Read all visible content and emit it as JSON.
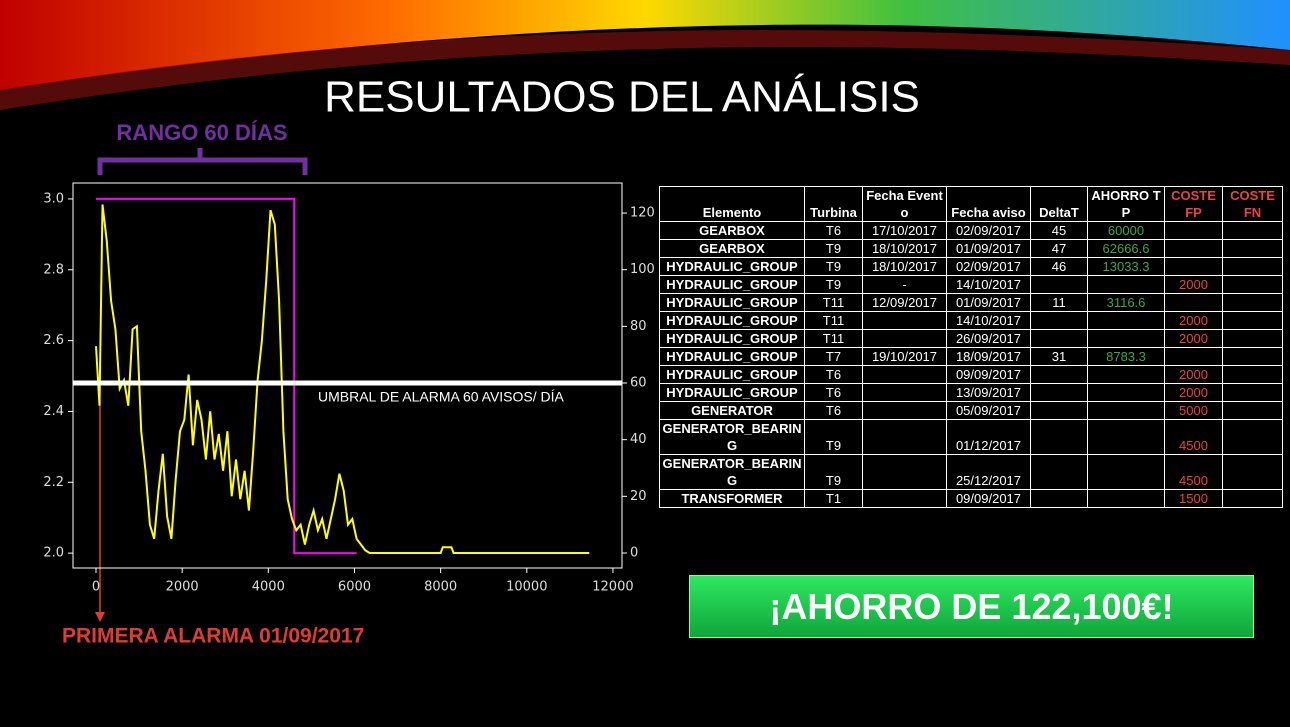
{
  "title": "RESULTADOS DEL ANÁLISIS",
  "chart_data": {
    "type": "line",
    "annotations": {
      "range": "RANGO 60 DÍAS",
      "first_alarm": "PRIMERA ALARMA 01/09/2017",
      "threshold": "UMBRAL DE ALARMA 60 AVISOS/ DÍA"
    },
    "threshold": {
      "value": 60,
      "axis": "y2",
      "color": "#ffffff"
    },
    "xlim": [
      -534,
      12210
    ],
    "xticks": [
      0,
      2000,
      4000,
      6000,
      8000,
      10000,
      12000
    ],
    "ylim": [
      1.958,
      3.045
    ],
    "yticks": [
      {
        "value": 2,
        "label": "2.0"
      },
      2.2,
      2.4,
      2.6,
      2.8,
      {
        "value": 3,
        "label": "3.0"
      }
    ],
    "y2lim": [
      -5.3,
      130.6
    ],
    "y2ticks": [
      0,
      20,
      40,
      60,
      80,
      100,
      120
    ],
    "series": [
      {
        "color": "#ff00ff",
        "x": [
          0,
          4600,
          4600,
          6050
        ],
        "values": [
          3,
          3,
          2,
          2
        ]
      },
      {
        "color": "#ffff00",
        "axis": "y2",
        "x": [
          0,
          80,
          150,
          250,
          350,
          450,
          550,
          650,
          750,
          850,
          950,
          1050,
          1150,
          1250,
          1350,
          1450,
          1550,
          1650,
          1750,
          1850,
          1950,
          2050,
          2150,
          2250,
          2350,
          2450,
          2550,
          2650,
          2750,
          2850,
          2950,
          3050,
          3150,
          3250,
          3350,
          3450,
          3550,
          3650,
          3750,
          3850,
          3950,
          4050,
          4150,
          4250,
          4350,
          4450,
          4550,
          4650,
          4750,
          4850,
          4950,
          5050,
          5150,
          5250,
          5350,
          5450,
          5550,
          5650,
          5750,
          5850,
          5950,
          6050,
          6150,
          6250,
          6350,
          8000,
          8050,
          8250,
          8300,
          11450
        ],
        "values": [
          73,
          52,
          123,
          110,
          89,
          79,
          58,
          61,
          52,
          79,
          80,
          43,
          29,
          10,
          5,
          22,
          35,
          13,
          5,
          26,
          43,
          47,
          63,
          38,
          54,
          47,
          33,
          50,
          33,
          42,
          29,
          43,
          20,
          33,
          19,
          29,
          15,
          36,
          61,
          75,
          96,
          121,
          116,
          89,
          43,
          19,
          12,
          8,
          10,
          3,
          10,
          15,
          8,
          12,
          5,
          12,
          19,
          28,
          22,
          10,
          12,
          5,
          3,
          1,
          0,
          0,
          2,
          2,
          0,
          0
        ]
      }
    ]
  },
  "table": {
    "header": [
      "Elemento",
      "Turbina",
      "Fecha Evento",
      "Fecha aviso",
      "DeltaT",
      "AHORRO TP",
      "COSTE FP",
      "COSTE FN"
    ],
    "rows": [
      [
        "GEARBOX",
        "T6",
        "17/10/2017",
        "02/09/2017",
        "45",
        "60000",
        null,
        null
      ],
      [
        "GEARBOX",
        "T9",
        "18/10/2017",
        "01/09/2017",
        "47",
        "62666.6",
        null,
        null
      ],
      [
        "HYDRAULIC_GROUP",
        "T9",
        "18/10/2017",
        "02/09/2017",
        "46",
        "13033.3",
        null,
        null
      ],
      [
        "HYDRAULIC_GROUP",
        "T9",
        "-",
        "14/10/2017",
        null,
        null,
        "2000",
        null
      ],
      [
        "HYDRAULIC_GROUP",
        "T11",
        "12/09/2017",
        "01/09/2017",
        "11",
        "3116.6",
        null,
        null
      ],
      [
        "HYDRAULIC_GROUP",
        "T11",
        null,
        "14/10/2017",
        null,
        null,
        "2000",
        null
      ],
      [
        "HYDRAULIC_GROUP",
        "T11",
        null,
        "26/09/2017",
        null,
        null,
        "2000",
        null
      ],
      [
        "HYDRAULIC_GROUP",
        "T7",
        "19/10/2017",
        "18/09/2017",
        "31",
        "8783.3",
        null,
        null
      ],
      [
        "HYDRAULIC_GROUP",
        "T6",
        null,
        "09/09/2017",
        null,
        null,
        "2000",
        null
      ],
      [
        "HYDRAULIC_GROUP",
        "T6",
        null,
        "13/09/2017",
        null,
        null,
        "2000",
        null
      ],
      [
        "GENERATOR",
        "T6",
        null,
        "05/09/2017",
        null,
        null,
        "5000",
        null
      ],
      [
        "GENERATOR_BEARING",
        "T9",
        null,
        "01/12/2017",
        null,
        null,
        "4500",
        null
      ],
      [
        "GENERATOR_BEARING",
        "T9",
        null,
        "25/12/2017",
        null,
        null,
        "4500",
        null
      ],
      [
        "TRANSFORMER",
        "T1",
        null,
        "09/09/2017",
        null,
        null,
        "1500",
        null
      ]
    ]
  },
  "banner": "¡AHORRO DE 122,100€!"
}
